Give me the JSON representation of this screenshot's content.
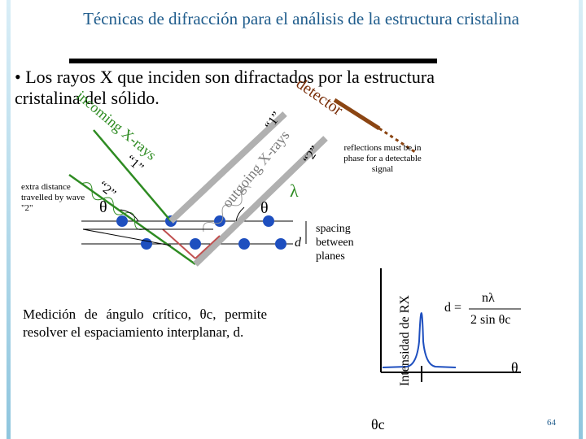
{
  "title": "Técnicas de difracción para el análisis de la estructura cristalina",
  "bullet": "Los rayos X que inciden son difractados por la estructura cristalina del sólido.",
  "labels": {
    "detector": "detector",
    "incoming_xrays": "incoming X-rays",
    "outgoing_xrays": "outgoing X-rays",
    "ray1_in": "“1”",
    "ray2_in": "“2”",
    "ray1_out": "“1”",
    "ray2_out": "“2”",
    "theta_left": "θ",
    "theta_right": "θ",
    "lambda": "λ",
    "d": "d",
    "extra_distance": "extra distance travelled by wave \"2\"",
    "reflections": "reflections must be in phase for a detectable signal",
    "spacing": "spacing between planes"
  },
  "caption": "Medición de ángulo crítico, θc, permite resolver el espaciamiento interplanar, d.",
  "plot": {
    "ylabel": "Intensidad de RX",
    "xlabel": "θ",
    "peak_label": "θc"
  },
  "formula": {
    "lhs": "d =",
    "numerator": "nλ",
    "denominator": "2 sin θc"
  },
  "page_number": "64",
  "colors": {
    "title": "#1f5c8c",
    "incoming": "#2e8b22",
    "outgoing": "#b0b0b0",
    "detector": "#8b4513",
    "atoms": "#1e4fbf",
    "phase": "#c05050"
  }
}
